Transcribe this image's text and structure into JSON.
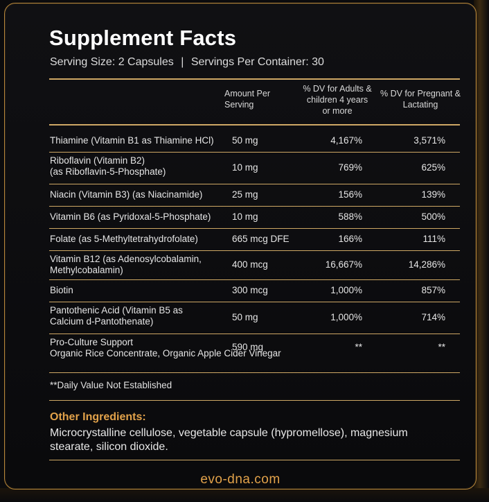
{
  "panel": {
    "title": "Supplement Facts",
    "serving_size": "Serving Size: 2 Capsules",
    "separator": "|",
    "servings_per_container": "Servings Per Container: 30"
  },
  "table": {
    "headers": {
      "amount": "Amount Per Serving",
      "dv_adults": "% DV for Adults & children 4 years or more",
      "dv_pregnant": "% DV for Pregnant & Lactating"
    },
    "rows": [
      {
        "name": "Thiamine (Vitamin B1 as Thiamine HCl)",
        "name2": "",
        "amount": "50 mg",
        "dv_adults": "4,167%",
        "dv_pregnant": "3,571%"
      },
      {
        "name": "Riboflavin (Vitamin B2)",
        "name2": "(as Riboflavin-5-Phosphate)",
        "amount": "10 mg",
        "dv_adults": "769%",
        "dv_pregnant": "625%"
      },
      {
        "name": "Niacin (Vitamin B3) (as Niacinamide)",
        "name2": "",
        "amount": "25 mg",
        "dv_adults": "156%",
        "dv_pregnant": "139%"
      },
      {
        "name": "Vitamin B6 (as Pyridoxal-5-Phosphate)",
        "name2": "",
        "amount": "10 mg",
        "dv_adults": "588%",
        "dv_pregnant": "500%"
      },
      {
        "name": "Folate (as 5-Methyltetrahydrofolate)",
        "name2": "",
        "amount": "665 mcg DFE",
        "dv_adults": "166%",
        "dv_pregnant": "111%"
      },
      {
        "name": "Vitamin B12 (as Adenosylcobalamin,",
        "name2": "Methylcobalamin)",
        "amount": "400 mcg",
        "dv_adults": "16,667%",
        "dv_pregnant": "14,286%"
      },
      {
        "name": "Biotin",
        "name2": "",
        "amount": "300 mcg",
        "dv_adults": "1,000%",
        "dv_pregnant": "857%"
      },
      {
        "name": "Pantothenic Acid (Vitamin B5 as",
        "name2": "Calcium d-Pantothenate)",
        "amount": "50 mg",
        "dv_adults": "1,000%",
        "dv_pregnant": "714%"
      },
      {
        "name": "Pro-Culture Support",
        "name2": "Organic Rice Concentrate, Organic Apple Cider Vinegar",
        "amount": "590 mg",
        "dv_adults": "**",
        "dv_pregnant": "**"
      }
    ]
  },
  "footnote": "**Daily Value Not Established",
  "other_ingredients": {
    "title": "Other Ingredients:",
    "text": "Microcrystalline cellulose, vegetable capsule (hypromellose), magnesium stearate, silicon dioxide."
  },
  "footer": {
    "website": "evo-dna.com"
  },
  "colors": {
    "accent_gold": "#e2a24a",
    "border_gold": "#b8873a",
    "background": "#0b0b0d"
  }
}
